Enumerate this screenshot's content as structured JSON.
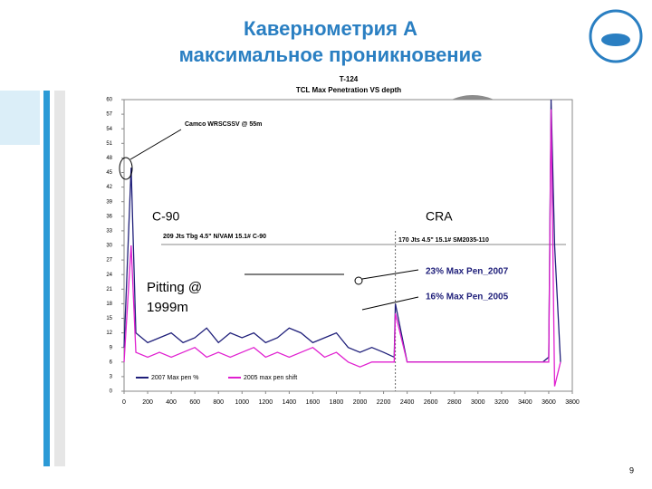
{
  "slide": {
    "title_lines": [
      "Кавернометрия А",
      "максимальное проникновение"
    ],
    "page_number": "9"
  },
  "chart_data": {
    "type": "line",
    "title": "T-124",
    "subtitle": "TCL Max Penetration VS depth",
    "annotations": [
      "Camco WRSCSSV @ 55m",
      "C-90",
      "CRA",
      "209 Jts Tbg 4.5\" N/VAM 15.1# C-90",
      "170 Jts 4.5\" 15.1# SM2035-110",
      "Pitting @ 1999m",
      "23% Max Pen_2007",
      "16% Max Pen_2005"
    ],
    "x": [
      0,
      60,
      100,
      200,
      300,
      400,
      500,
      600,
      700,
      800,
      900,
      1000,
      1100,
      1200,
      1300,
      1400,
      1500,
      1600,
      1700,
      1800,
      1900,
      2000,
      2100,
      2200,
      2290,
      2300,
      2400,
      2600,
      2800,
      3000,
      3200,
      3400,
      3550,
      3600,
      3620,
      3650,
      3700
    ],
    "series": [
      {
        "name": "2007 Max pen %",
        "color": "#1f1f7a",
        "values": [
          9,
          46,
          12,
          10,
          11,
          12,
          10,
          11,
          13,
          10,
          12,
          11,
          12,
          10,
          11,
          13,
          12,
          10,
          11,
          12,
          9,
          8,
          9,
          8,
          7,
          18,
          6,
          6,
          6,
          6,
          6,
          6,
          6,
          7,
          60,
          30,
          6
        ]
      },
      {
        "name": "2005 max pen shift",
        "color": "#e020d0",
        "values": [
          6,
          30,
          8,
          7,
          8,
          7,
          8,
          9,
          7,
          8,
          7,
          8,
          9,
          7,
          8,
          7,
          8,
          9,
          7,
          8,
          6,
          5,
          6,
          6,
          6,
          16,
          6,
          6,
          6,
          6,
          6,
          6,
          6,
          6,
          58,
          1,
          6
        ]
      }
    ],
    "xlim": [
      0,
      3800
    ],
    "xticks": [
      0,
      200,
      400,
      600,
      800,
      1000,
      1200,
      1400,
      1600,
      1800,
      2000,
      2200,
      2400,
      2600,
      2800,
      3000,
      3200,
      3400,
      3600,
      3800
    ],
    "ylim": [
      0,
      60
    ],
    "yticks": [
      0,
      3,
      6,
      9,
      12,
      15,
      18,
      21,
      24,
      27,
      30,
      33,
      36,
      39,
      42,
      45,
      48,
      51,
      54,
      57,
      60
    ]
  }
}
